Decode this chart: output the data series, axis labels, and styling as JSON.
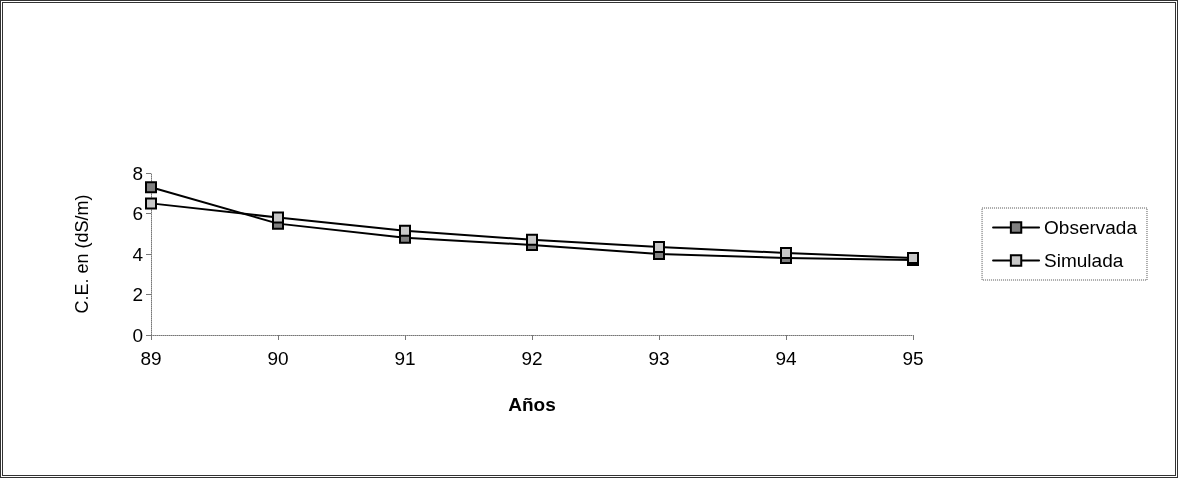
{
  "chart_data": {
    "type": "line",
    "xlabel": "Años",
    "ylabel": "C.E. en (dS/m)",
    "categories": [
      "89",
      "90",
      "91",
      "92",
      "93",
      "94",
      "95"
    ],
    "series": [
      {
        "name": "Observada",
        "color": "#808080",
        "values": [
          7.3,
          5.5,
          4.8,
          4.45,
          4.0,
          3.8,
          3.7
        ]
      },
      {
        "name": "Simulada",
        "color": "#c8c8c8",
        "values": [
          6.5,
          5.8,
          5.15,
          4.7,
          4.35,
          4.05,
          3.8
        ]
      }
    ],
    "ylim": [
      0,
      8
    ],
    "yticks": [
      0,
      2,
      4,
      6,
      8
    ],
    "grid": false,
    "legend": "right",
    "marker": "square",
    "line_style": "solid"
  }
}
